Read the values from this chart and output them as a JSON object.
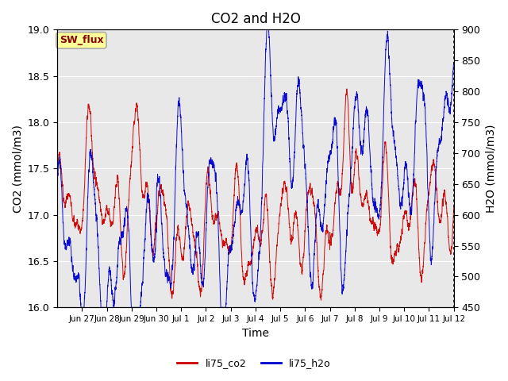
{
  "title": "CO2 and H2O",
  "xlabel": "Time",
  "ylabel_left": "CO2 (mmol/m3)",
  "ylabel_right": "H2O (mmol/m3)",
  "ylim_left": [
    16.0,
    19.0
  ],
  "ylim_right": [
    450,
    900
  ],
  "annotation_text": "SW_flux",
  "annotation_color": "#8B0000",
  "annotation_bg": "#FFFF99",
  "annotation_border": "#AAAAAA",
  "plot_bg": "#E8E8E8",
  "line_co2_color": "#CC0000",
  "line_h2o_color": "#0000CC",
  "legend_entries": [
    "li75_co2",
    "li75_h2o"
  ],
  "tick_labels": [
    "Jun 27",
    "Jun 28",
    "Jun 29",
    "Jun 30",
    "Jul 1",
    "Jul 2",
    "Jul 3",
    "Jul 4",
    "Jul 5",
    "Jul 6",
    "Jul 7",
    "Jul 8",
    "Jul 9",
    "Jul 10",
    "Jul 11",
    "Jul 12"
  ],
  "n_points": 5000,
  "end_day": 16.0
}
